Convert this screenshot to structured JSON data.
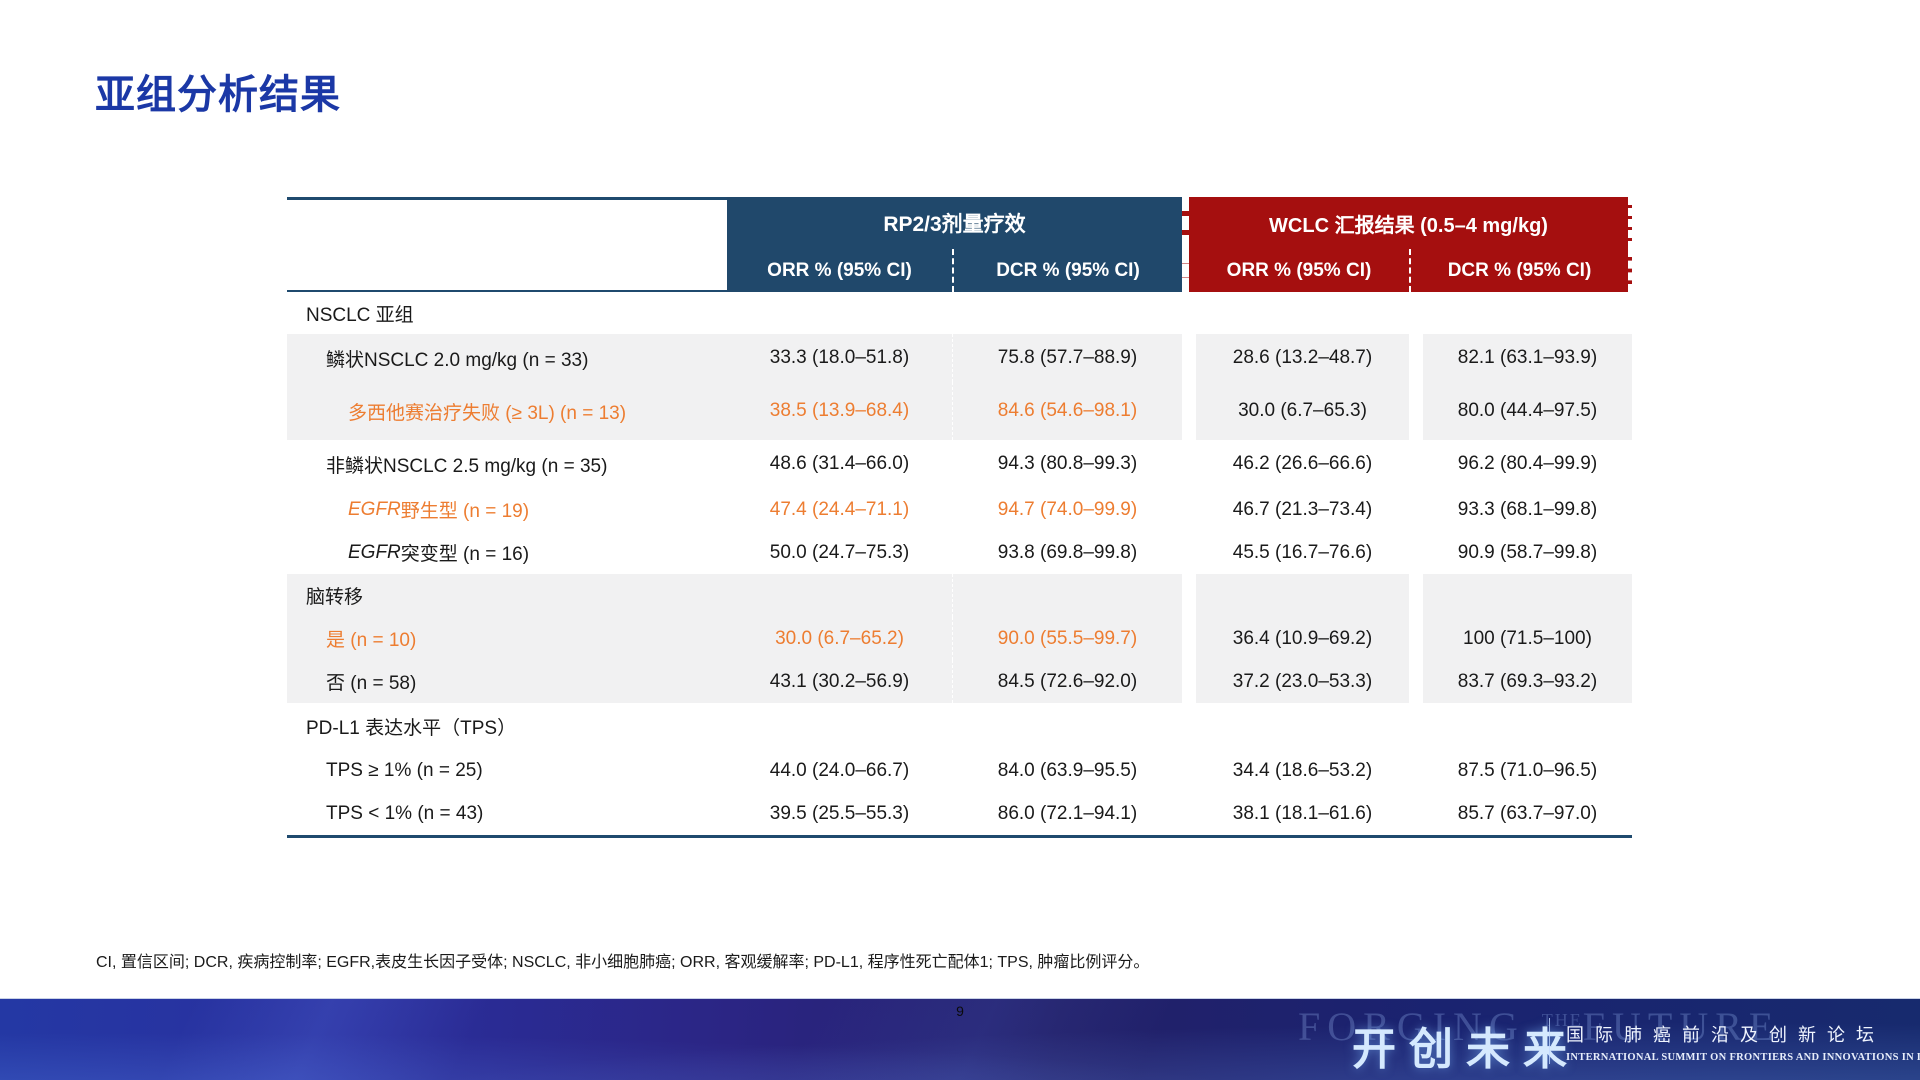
{
  "title": "亚组分析结果",
  "page_number": "9",
  "colors": {
    "title_blue": "#1B38A6",
    "header_blue": "#20486B",
    "header_red": "#A50F0F",
    "accent_orange": "#ED7D31",
    "band_gray": "#F1F1F2",
    "border_navy": "#1F4A6E"
  },
  "table": {
    "header": {
      "group_rp23": "RP2/3剂量疗效",
      "group_wclc": "WCLC 汇报结果 (0.5–4 mg/kg)",
      "sub": [
        "ORR % (95% CI)",
        "DCR % (95% CI)",
        "ORR % (95% CI)",
        "DCR % (95% CI)"
      ]
    },
    "rows": [
      {
        "label": "NSCLC 亚组",
        "values": [
          "",
          "",
          "",
          ""
        ]
      },
      {
        "label": "鳞状NSCLC 2.0 mg/kg (n = 33)",
        "values": [
          "33.3 (18.0–51.8)",
          "75.8 (57.7–88.9)",
          "28.6 (13.2–48.7)",
          "82.1 (63.1–93.9)"
        ]
      },
      {
        "label": "多西他赛治疗失败 (≥ 3L) (n = 13)",
        "values": [
          "38.5 (13.9–68.4)",
          "84.6 (54.6–98.1)",
          "30.0 (6.7–65.3)",
          "80.0 (44.4–97.5)"
        ]
      },
      {
        "label": "非鳞状NSCLC 2.5 mg/kg (n = 35)",
        "values": [
          "48.6 (31.4–66.0)",
          "94.3 (80.8–99.3)",
          "46.2 (26.6–66.6)",
          "96.2 (80.4–99.9)"
        ]
      },
      {
        "label_italic": "EGFR",
        "label": " 野生型 (n = 19)",
        "values": [
          "47.4 (24.4–71.1)",
          "94.7 (74.0–99.9)",
          "46.7 (21.3–73.4)",
          "93.3 (68.1–99.8)"
        ]
      },
      {
        "label_italic": "EGFR",
        "label": " 突变型 (n = 16)",
        "values": [
          "50.0 (24.7–75.3)",
          "93.8 (69.8–99.8)",
          "45.5 (16.7–76.6)",
          "90.9 (58.7–99.8)"
        ]
      },
      {
        "label": "脑转移",
        "values": [
          "",
          "",
          "",
          ""
        ]
      },
      {
        "label": "是 (n = 10)",
        "values": [
          "30.0 (6.7–65.2)",
          "90.0 (55.5–99.7)",
          "36.4 (10.9–69.2)",
          "100 (71.5–100)"
        ]
      },
      {
        "label": "否 (n = 58)",
        "values": [
          "43.1 (30.2–56.9)",
          "84.5 (72.6–92.0)",
          "37.2 (23.0–53.3)",
          "83.7 (69.3–93.2)"
        ]
      },
      {
        "label": "PD-L1 表达水平（TPS）",
        "values": [
          "",
          "",
          "",
          ""
        ]
      },
      {
        "label": "TPS ≥ 1% (n = 25)",
        "values": [
          "44.0 (24.0–66.7)",
          "84.0 (63.9–95.5)",
          "34.4 (18.6–53.2)",
          "87.5 (71.0–96.5)"
        ]
      },
      {
        "label": "TPS < 1% (n = 43)",
        "values": [
          "39.5 (25.5–55.3)",
          "86.0 (72.1–94.1)",
          "38.1 (18.1–61.6)",
          "85.7 (63.7–97.0)"
        ]
      }
    ]
  },
  "footnote": "CI, 置信区间; DCR, 疾病控制率; EGFR,表皮生长因子受体; NSCLC, 非小细胞肺癌; ORR, 客观缓解率; PD-L1, 程序性死亡配体1; TPS, 肿瘤比例评分。",
  "banner": {
    "ghost_word1": "FORGING",
    "ghost_the": "THE",
    "ghost_word2": "FUTURE",
    "logo_cn": "开创未来",
    "subtitle_cn": "国际肺癌前沿及创新论坛",
    "subtitle_en": "INTERNATIONAL SUMMIT ON FRONTIERS AND INNOVATIONS IN LUNG CANCER"
  }
}
